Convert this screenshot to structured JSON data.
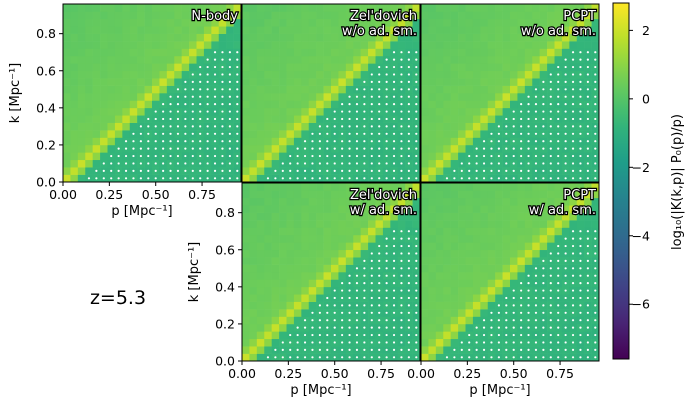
{
  "figure": {
    "redshift_label": "z=5.3",
    "colorbar_label": "log₁₀(|K(k,p)| P₀(p)/p)",
    "colorbar_ticks": [
      "2",
      "0",
      "−2",
      "−4",
      "−6"
    ],
    "colors": {
      "background": "#ffffff",
      "axis": "#000000",
      "mask_dot": "#ffffff"
    }
  },
  "chart_data": {
    "type": "heatmap",
    "colormap": "viridis",
    "value_range": [
      -7.6,
      2.8
    ],
    "colorbar_tick_values": [
      2,
      0,
      -2,
      -4,
      -6
    ],
    "x_range": [
      0,
      0.96
    ],
    "y_range": [
      0,
      0.96
    ],
    "xlabel": "p [Mpc⁻¹]",
    "ylabel": "k [Mpc⁻¹]",
    "x_tick_values": [
      0,
      0.25,
      0.5,
      0.75
    ],
    "x_tick_labels": [
      "0.00",
      "0.25",
      "0.50",
      "0.75"
    ],
    "y_tick_values": [
      0,
      0.2,
      0.4,
      0.6,
      0.8
    ],
    "y_tick_labels": [
      "0.0",
      "0.2",
      "0.4",
      "0.6",
      "0.8"
    ],
    "diagonal_value": 2.0,
    "below_diagonal_value": -0.7,
    "above_diagonal_value": 0.1,
    "panels": [
      {
        "id": "nbody",
        "label": [
          "N-body"
        ],
        "row": 0,
        "col": 0
      },
      {
        "id": "zel-no-sm",
        "label": [
          "Zel'dovich",
          "w/o ad. sm."
        ],
        "row": 0,
        "col": 1
      },
      {
        "id": "pcpt-no-sm",
        "label": [
          "PCPT",
          "w/o ad. sm."
        ],
        "row": 0,
        "col": 2
      },
      {
        "id": "zel-sm",
        "label": [
          "Zel'dovich",
          "w/ ad. sm."
        ],
        "row": 1,
        "col": 1
      },
      {
        "id": "pcpt-sm",
        "label": [
          "PCPT",
          "w/ ad. sm."
        ],
        "row": 1,
        "col": 2
      }
    ]
  }
}
